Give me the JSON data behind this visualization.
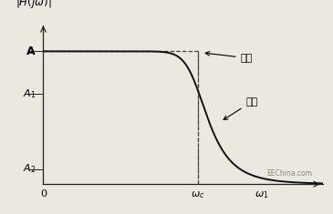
{
  "background_color": "#ede8df",
  "A_level": 0.88,
  "A1_level": 0.6,
  "A2_level": 0.1,
  "omega_c": 5.8,
  "omega_1": 8.2,
  "x_max": 10.5,
  "y_max": 1.05,
  "ideal_label": "理想",
  "actual_label": "实际",
  "watermark": "EEChina.com",
  "line_color": "#111111",
  "dashed_color": "#444444",
  "filter_order": 9
}
